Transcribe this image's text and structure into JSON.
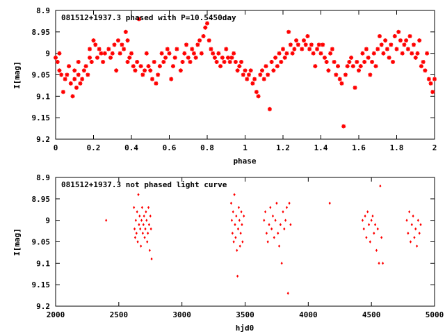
{
  "chart_data": [
    {
      "type": "scatter",
      "title": "081512+1937.3 phased with P=10.5450day",
      "xlabel": "phase",
      "ylabel": "I[mag]",
      "xlim": [
        0,
        2
      ],
      "ylim": [
        9.2,
        8.9
      ],
      "y_inverted": true,
      "grid": false,
      "marker_color": "#ff0000",
      "marker": "star",
      "xticks": [
        "0",
        "0.2",
        "0.4",
        "0.6",
        "0.8",
        "1",
        "1.2",
        "1.4",
        "1.6",
        "1.8",
        "2"
      ],
      "yticks": [
        "8.9",
        "8.95",
        "9",
        "9.05",
        "9.1",
        "9.15",
        "9.2"
      ],
      "points": [
        [
          0.0,
          9.01
        ],
        [
          0.01,
          9.02
        ],
        [
          0.02,
          9.04
        ],
        [
          0.02,
          9.0
        ],
        [
          0.03,
          9.05
        ],
        [
          0.04,
          9.09
        ],
        [
          0.05,
          9.06
        ],
        [
          0.06,
          9.05
        ],
        [
          0.07,
          9.03
        ],
        [
          0.08,
          9.07
        ],
        [
          0.09,
          9.1
        ],
        [
          0.1,
          9.04
        ],
        [
          0.1,
          9.06
        ],
        [
          0.11,
          9.08
        ],
        [
          0.12,
          9.05
        ],
        [
          0.12,
          9.02
        ],
        [
          0.13,
          9.07
        ],
        [
          0.14,
          9.06
        ],
        [
          0.15,
          9.04
        ],
        [
          0.16,
          9.03
        ],
        [
          0.17,
          9.05
        ],
        [
          0.18,
          9.01
        ],
        [
          0.18,
          8.99
        ],
        [
          0.19,
          9.02
        ],
        [
          0.2,
          8.97
        ],
        [
          0.21,
          8.98
        ],
        [
          0.22,
          9.01
        ],
        [
          0.23,
          8.99
        ],
        [
          0.24,
          9.0
        ],
        [
          0.25,
          9.02
        ],
        [
          0.26,
          9.0
        ],
        [
          0.28,
          8.99
        ],
        [
          0.29,
          9.01
        ],
        [
          0.3,
          9.0
        ],
        [
          0.31,
          8.98
        ],
        [
          0.32,
          9.04
        ],
        [
          0.33,
          8.97
        ],
        [
          0.34,
          9.0
        ],
        [
          0.35,
          8.98
        ],
        [
          0.36,
          8.99
        ],
        [
          0.37,
          8.95
        ],
        [
          0.38,
          8.97
        ],
        [
          0.38,
          9.02
        ],
        [
          0.39,
          9.01
        ],
        [
          0.4,
          9.0
        ],
        [
          0.41,
          9.03
        ],
        [
          0.42,
          9.04
        ],
        [
          0.43,
          9.02
        ],
        [
          0.44,
          8.92
        ],
        [
          0.45,
          9.03
        ],
        [
          0.46,
          9.05
        ],
        [
          0.47,
          9.04
        ],
        [
          0.48,
          9.0
        ],
        [
          0.49,
          9.03
        ],
        [
          0.5,
          9.04
        ],
        [
          0.51,
          9.06
        ],
        [
          0.52,
          9.02
        ],
        [
          0.53,
          9.07
        ],
        [
          0.54,
          9.05
        ],
        [
          0.55,
          9.03
        ],
        [
          0.56,
          9.0
        ],
        [
          0.57,
          9.02
        ],
        [
          0.58,
          9.01
        ],
        [
          0.59,
          8.99
        ],
        [
          0.6,
          9.0
        ],
        [
          0.61,
          9.06
        ],
        [
          0.62,
          9.03
        ],
        [
          0.63,
          9.01
        ],
        [
          0.64,
          8.99
        ],
        [
          0.66,
          9.04
        ],
        [
          0.67,
          9.02
        ],
        [
          0.68,
          9.0
        ],
        [
          0.69,
          8.98
        ],
        [
          0.7,
          9.01
        ],
        [
          0.71,
          9.02
        ],
        [
          0.72,
          8.99
        ],
        [
          0.73,
          9.0
        ],
        [
          0.74,
          9.01
        ],
        [
          0.75,
          8.98
        ],
        [
          0.76,
          8.97
        ],
        [
          0.77,
          9.0
        ],
        [
          0.78,
          8.96
        ],
        [
          0.79,
          8.94
        ],
        [
          0.8,
          8.93
        ],
        [
          0.81,
          8.97
        ],
        [
          0.82,
          8.99
        ],
        [
          0.83,
          9.0
        ],
        [
          0.84,
          9.01
        ],
        [
          0.85,
          9.02
        ],
        [
          0.86,
          9.0
        ],
        [
          0.87,
          9.03
        ],
        [
          0.88,
          9.01
        ],
        [
          0.89,
          9.02
        ],
        [
          0.9,
          8.99
        ],
        [
          0.91,
          9.01
        ],
        [
          0.92,
          9.02
        ],
        [
          0.93,
          9.01
        ],
        [
          0.94,
          9.0
        ],
        [
          0.95,
          9.02
        ],
        [
          0.96,
          9.04
        ],
        [
          0.97,
          9.03
        ],
        [
          0.98,
          9.02
        ],
        [
          0.99,
          9.05
        ],
        [
          1.0,
          9.04
        ],
        [
          1.01,
          9.06
        ],
        [
          1.02,
          9.05
        ],
        [
          1.03,
          9.04
        ],
        [
          1.04,
          9.07
        ],
        [
          1.05,
          9.06
        ],
        [
          1.06,
          9.09
        ],
        [
          1.07,
          9.1
        ],
        [
          1.08,
          9.05
        ],
        [
          1.09,
          9.04
        ],
        [
          1.1,
          9.06
        ],
        [
          1.11,
          9.03
        ],
        [
          1.12,
          9.05
        ],
        [
          1.13,
          9.13
        ],
        [
          1.14,
          9.02
        ],
        [
          1.15,
          9.04
        ],
        [
          1.16,
          9.01
        ],
        [
          1.17,
          9.03
        ],
        [
          1.18,
          9.0
        ],
        [
          1.19,
          9.02
        ],
        [
          1.2,
          8.99
        ],
        [
          1.21,
          9.01
        ],
        [
          1.22,
          9.0
        ],
        [
          1.23,
          8.95
        ],
        [
          1.24,
          8.98
        ],
        [
          1.25,
          9.0
        ],
        [
          1.26,
          8.99
        ],
        [
          1.27,
          8.97
        ],
        [
          1.28,
          8.98
        ],
        [
          1.3,
          8.99
        ],
        [
          1.31,
          8.97
        ],
        [
          1.32,
          8.98
        ],
        [
          1.33,
          8.96
        ],
        [
          1.34,
          8.99
        ],
        [
          1.35,
          8.98
        ],
        [
          1.36,
          9.0
        ],
        [
          1.37,
          9.03
        ],
        [
          1.38,
          8.99
        ],
        [
          1.39,
          8.98
        ],
        [
          1.4,
          9.0
        ],
        [
          1.41,
          8.98
        ],
        [
          1.42,
          9.01
        ],
        [
          1.43,
          9.02
        ],
        [
          1.44,
          9.04
        ],
        [
          1.45,
          9.0
        ],
        [
          1.46,
          8.99
        ],
        [
          1.47,
          9.02
        ],
        [
          1.48,
          9.05
        ],
        [
          1.49,
          9.03
        ],
        [
          1.5,
          9.06
        ],
        [
          1.51,
          9.07
        ],
        [
          1.52,
          9.17
        ],
        [
          1.53,
          9.05
        ],
        [
          1.54,
          9.03
        ],
        [
          1.55,
          9.02
        ],
        [
          1.56,
          9.01
        ],
        [
          1.57,
          9.03
        ],
        [
          1.58,
          9.08
        ],
        [
          1.59,
          9.02
        ],
        [
          1.6,
          9.04
        ],
        [
          1.61,
          9.03
        ],
        [
          1.62,
          9.0
        ],
        [
          1.63,
          9.02
        ],
        [
          1.64,
          8.99
        ],
        [
          1.65,
          9.01
        ],
        [
          1.66,
          9.05
        ],
        [
          1.67,
          9.02
        ],
        [
          1.68,
          9.0
        ],
        [
          1.69,
          9.03
        ],
        [
          1.7,
          8.99
        ],
        [
          1.71,
          8.96
        ],
        [
          1.72,
          8.98
        ],
        [
          1.73,
          9.0
        ],
        [
          1.74,
          8.97
        ],
        [
          1.75,
          8.99
        ],
        [
          1.76,
          9.01
        ],
        [
          1.77,
          8.98
        ],
        [
          1.78,
          9.02
        ],
        [
          1.79,
          8.96
        ],
        [
          1.8,
          8.99
        ],
        [
          1.81,
          8.95
        ],
        [
          1.82,
          8.97
        ],
        [
          1.83,
          9.0
        ],
        [
          1.84,
          8.98
        ],
        [
          1.85,
          8.97
        ],
        [
          1.86,
          8.99
        ],
        [
          1.87,
          8.96
        ],
        [
          1.88,
          9.0
        ],
        [
          1.89,
          8.98
        ],
        [
          1.9,
          9.01
        ],
        [
          1.91,
          9.0
        ],
        [
          1.92,
          8.97
        ],
        [
          1.93,
          9.03
        ],
        [
          1.94,
          9.02
        ],
        [
          1.95,
          9.04
        ],
        [
          1.96,
          9.0
        ],
        [
          1.97,
          9.06
        ],
        [
          1.98,
          9.07
        ],
        [
          1.99,
          9.09
        ],
        [
          2.0,
          9.06
        ]
      ]
    },
    {
      "type": "scatter",
      "title": "081512+1937.3 not phased light curve",
      "xlabel": "hjd0",
      "ylabel": "I[mag]",
      "xlim": [
        2000,
        5000
      ],
      "ylim": [
        9.2,
        8.9
      ],
      "y_inverted": true,
      "grid": false,
      "marker_color": "#ff0000",
      "marker": "diamond",
      "xticks": [
        "2000",
        "2500",
        "3000",
        "3500",
        "4000",
        "4500",
        "5000"
      ],
      "yticks": [
        "8.9",
        "8.95",
        "9",
        "9.05",
        "9.1",
        "9.15",
        "9.2"
      ],
      "points": [
        [
          2400,
          9.0
        ],
        [
          2620,
          8.97
        ],
        [
          2625,
          9.02
        ],
        [
          2630,
          9.04
        ],
        [
          2635,
          9.0
        ],
        [
          2640,
          9.03
        ],
        [
          2645,
          8.98
        ],
        [
          2650,
          9.05
        ],
        [
          2655,
          8.94
        ],
        [
          2660,
          9.01
        ],
        [
          2665,
          8.99
        ],
        [
          2670,
          9.02
        ],
        [
          2675,
          9.06
        ],
        [
          2680,
          9.0
        ],
        [
          2685,
          8.97
        ],
        [
          2690,
          9.03
        ],
        [
          2695,
          9.01
        ],
        [
          2700,
          8.99
        ],
        [
          2705,
          9.04
        ],
        [
          2710,
          9.02
        ],
        [
          2715,
          8.98
        ],
        [
          2720,
          9.0
        ],
        [
          2725,
          9.05
        ],
        [
          2730,
          9.03
        ],
        [
          2735,
          8.97
        ],
        [
          2740,
          9.01
        ],
        [
          2745,
          9.07
        ],
        [
          2750,
          8.99
        ],
        [
          2755,
          9.02
        ],
        [
          2760,
          9.09
        ],
        [
          3390,
          8.96
        ],
        [
          3395,
          9.0
        ],
        [
          3400,
          9.03
        ],
        [
          3405,
          8.98
        ],
        [
          3410,
          9.05
        ],
        [
          3415,
          8.94
        ],
        [
          3420,
          9.01
        ],
        [
          3425,
          9.04
        ],
        [
          3430,
          8.99
        ],
        [
          3435,
          9.07
        ],
        [
          3440,
          9.13
        ],
        [
          3445,
          9.02
        ],
        [
          3450,
          8.97
        ],
        [
          3455,
          9.0
        ],
        [
          3460,
          9.06
        ],
        [
          3465,
          9.03
        ],
        [
          3470,
          8.98
        ],
        [
          3475,
          9.01
        ],
        [
          3480,
          9.05
        ],
        [
          3490,
          8.99
        ],
        [
          3650,
          9.0
        ],
        [
          3660,
          8.98
        ],
        [
          3670,
          9.03
        ],
        [
          3680,
          9.05
        ],
        [
          3690,
          9.01
        ],
        [
          3700,
          8.97
        ],
        [
          3710,
          9.02
        ],
        [
          3720,
          8.99
        ],
        [
          3730,
          9.04
        ],
        [
          3740,
          9.0
        ],
        [
          3750,
          8.96
        ],
        [
          3760,
          9.03
        ],
        [
          3770,
          9.06
        ],
        [
          3780,
          9.01
        ],
        [
          3790,
          9.1
        ],
        [
          3800,
          8.98
        ],
        [
          3810,
          9.02
        ],
        [
          3820,
          9.0
        ],
        [
          3830,
          8.97
        ],
        [
          3840,
          9.17
        ],
        [
          3850,
          8.96
        ],
        [
          3860,
          9.01
        ],
        [
          4170,
          8.96
        ],
        [
          4430,
          9.0
        ],
        [
          4440,
          9.02
        ],
        [
          4450,
          8.99
        ],
        [
          4460,
          9.04
        ],
        [
          4470,
          8.98
        ],
        [
          4480,
          9.01
        ],
        [
          4490,
          9.05
        ],
        [
          4500,
          9.0
        ],
        [
          4510,
          8.99
        ],
        [
          4520,
          9.03
        ],
        [
          4530,
          9.01
        ],
        [
          4540,
          9.07
        ],
        [
          4550,
          9.02
        ],
        [
          4560,
          9.1
        ],
        [
          4570,
          8.92
        ],
        [
          4580,
          9.04
        ],
        [
          4590,
          9.1
        ],
        [
          4780,
          9.0
        ],
        [
          4790,
          9.03
        ],
        [
          4800,
          8.98
        ],
        [
          4810,
          9.05
        ],
        [
          4820,
          9.01
        ],
        [
          4830,
          8.99
        ],
        [
          4840,
          9.04
        ],
        [
          4850,
          9.02
        ],
        [
          4860,
          9.06
        ],
        [
          4870,
          9.0
        ],
        [
          4880,
          9.03
        ],
        [
          4890,
          9.01
        ]
      ]
    }
  ]
}
